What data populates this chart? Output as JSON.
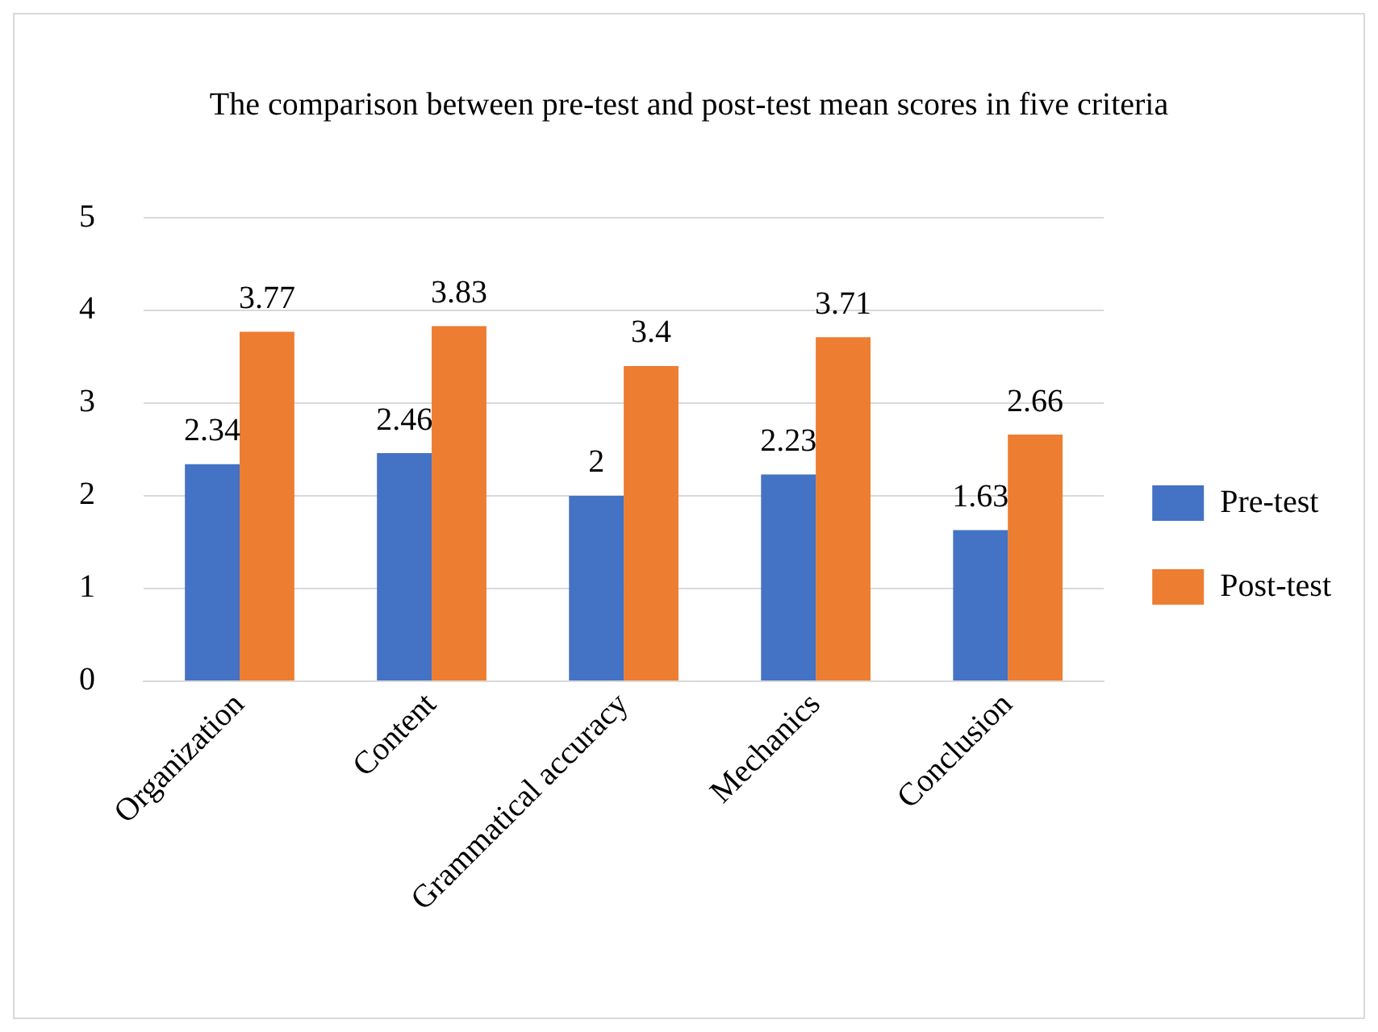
{
  "chart_data": {
    "type": "bar",
    "title": "The comparison between pre-test and post-test mean scores in five criteria",
    "categories": [
      "Organization",
      "Content",
      "Grammatical accuracy",
      "Mechanics",
      "Conclusion"
    ],
    "series": [
      {
        "name": "Pre-test",
        "color": "#4472c4",
        "values": [
          2.34,
          2.46,
          2,
          2.23,
          1.63
        ]
      },
      {
        "name": "Post-test",
        "color": "#ed7d31",
        "values": [
          3.77,
          3.83,
          3.4,
          3.71,
          2.66
        ]
      }
    ],
    "ylim": [
      0,
      5
    ],
    "yticks": [
      0,
      1,
      2,
      3,
      4,
      5
    ],
    "grid": "y",
    "legend": "right",
    "data_labels": true
  }
}
